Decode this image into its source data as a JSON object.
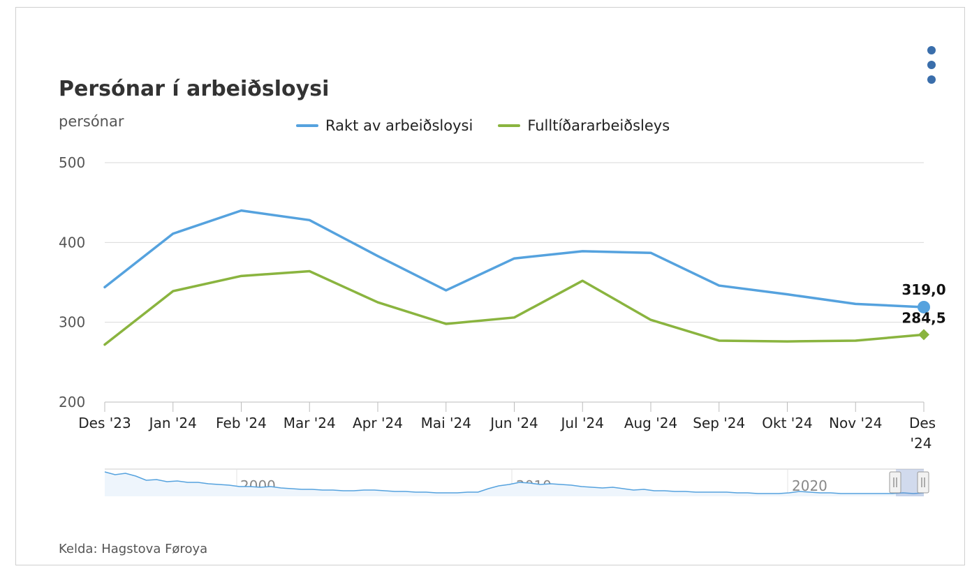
{
  "chart": {
    "title": "Persónar í arbeiðsloysi",
    "unit": "persónar",
    "source": "Kelda: Hagstova Føroya",
    "menu_icon": "vertical-dots-icon"
  },
  "colors": {
    "series1": "#55a2de",
    "series2": "#8ab43f",
    "grid": "#d9d9d9",
    "axis": "#bbbbbb",
    "menu": "#3a6eab"
  },
  "navigator": {
    "labels": [
      "2000",
      "2010",
      "2020"
    ]
  },
  "chart_data": {
    "type": "line",
    "title": "Persónar í arbeiðsloysi",
    "ylabel": "persónar",
    "xlabel": "",
    "categories": [
      "Des '23",
      "Jan '24",
      "Feb '24",
      "Mar '24",
      "Apr '24",
      "Mai '24",
      "Jun '24",
      "Jul '24",
      "Aug '24",
      "Sep '24",
      "Okt '24",
      "Nov '24",
      "Des '24"
    ],
    "yticks": [
      "200",
      "300",
      "400",
      "500"
    ],
    "ylim": [
      200,
      500
    ],
    "grid": true,
    "legend": "top",
    "series": [
      {
        "name": "Rakt av arbeiðsloysi",
        "values": [
          344,
          411,
          440,
          428,
          383,
          340,
          380,
          389,
          387,
          346,
          335,
          323,
          319
        ],
        "last_label": "319,0"
      },
      {
        "name": "Fulltíðararbeiðsleys",
        "values": [
          272,
          339,
          358,
          364,
          325,
          298,
          306,
          352,
          303,
          277,
          276,
          277,
          284.5
        ],
        "last_label": "284,5"
      }
    ]
  }
}
